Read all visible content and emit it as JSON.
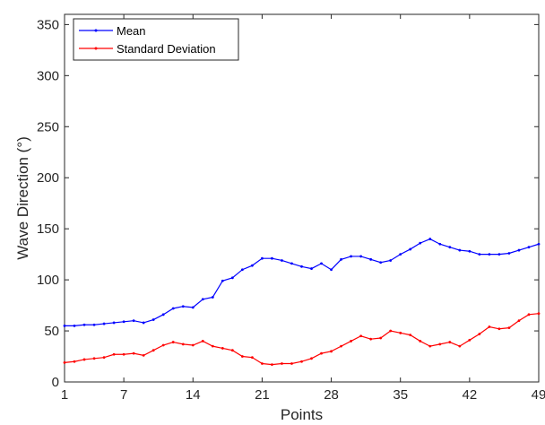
{
  "chart_data": {
    "type": "line",
    "title": "",
    "xlabel": "Points",
    "ylabel": "Wave Direction (°)",
    "xlim": [
      1,
      49
    ],
    "ylim": [
      0,
      360
    ],
    "xticks": [
      1,
      7,
      14,
      21,
      28,
      35,
      42,
      49
    ],
    "yticks": [
      0,
      50,
      100,
      150,
      200,
      250,
      300,
      350
    ],
    "grid": false,
    "legend": "top-left",
    "x": [
      1,
      2,
      3,
      4,
      5,
      6,
      7,
      8,
      9,
      10,
      11,
      12,
      13,
      14,
      15,
      16,
      17,
      18,
      19,
      20,
      21,
      22,
      23,
      24,
      25,
      26,
      27,
      28,
      29,
      30,
      31,
      32,
      33,
      34,
      35,
      36,
      37,
      38,
      39,
      40,
      41,
      42,
      43,
      44,
      45,
      46,
      47,
      48,
      49
    ],
    "series": [
      {
        "name": "Mean",
        "color": "#0000ff",
        "values": [
          55,
          55,
          56,
          56,
          57,
          58,
          59,
          60,
          58,
          61,
          66,
          72,
          74,
          73,
          81,
          83,
          99,
          102,
          110,
          114,
          121,
          121,
          119,
          116,
          113,
          111,
          116,
          110,
          120,
          123,
          123,
          120,
          117,
          119,
          125,
          130,
          136,
          140,
          135,
          132,
          129,
          128,
          125,
          125,
          125,
          126,
          129,
          132,
          135
        ]
      },
      {
        "name": "Standard Deviation",
        "color": "#ff0000",
        "values": [
          19,
          20,
          22,
          23,
          24,
          27,
          27,
          28,
          26,
          31,
          36,
          39,
          37,
          36,
          40,
          35,
          33,
          31,
          25,
          24,
          18,
          17,
          18,
          18,
          20,
          23,
          28,
          30,
          35,
          40,
          45,
          42,
          43,
          50,
          48,
          46,
          40,
          35,
          37,
          39,
          35,
          41,
          47,
          54,
          52,
          53,
          60,
          66,
          67
        ]
      }
    ]
  }
}
